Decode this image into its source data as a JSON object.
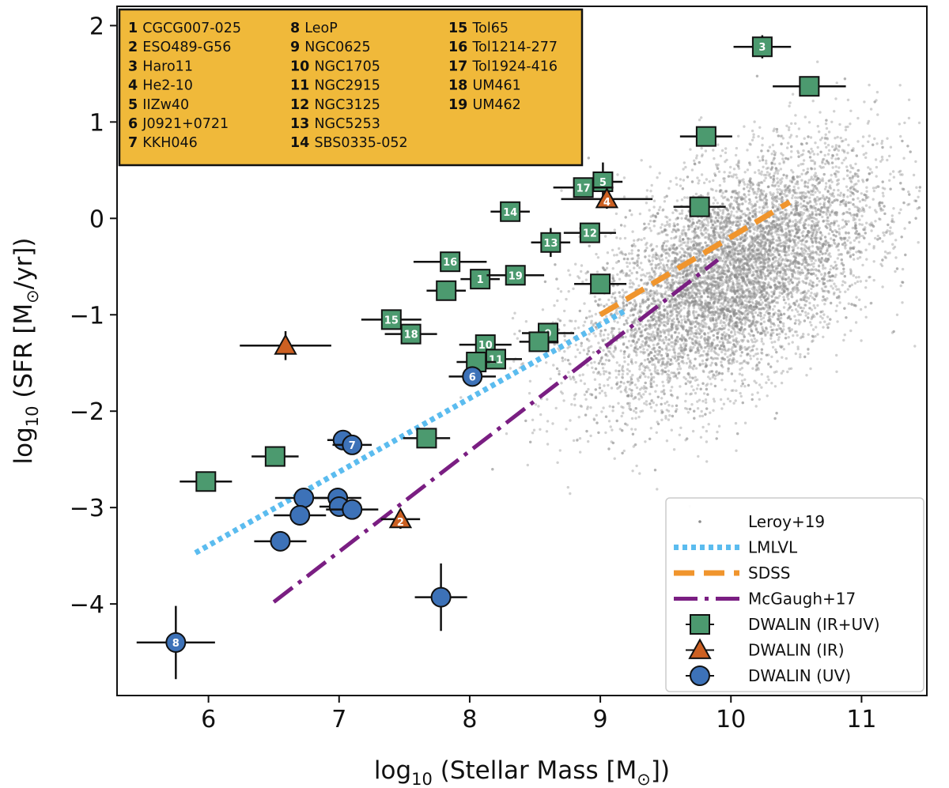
{
  "chart_data": {
    "type": "scatter",
    "title": "",
    "xlabel": {
      "prefix": "log",
      "sub": "10",
      "text": " (Stellar Mass [M",
      "sun": "⊙",
      "suffix": "])"
    },
    "ylabel": {
      "prefix": "log",
      "sub": "10",
      "text": " (SFR [M",
      "sun": "⊙",
      "suffix": "/yr])"
    },
    "xlim": [
      5.3,
      11.5
    ],
    "ylim": [
      -4.95,
      2.2
    ],
    "xticks": [
      6,
      7,
      8,
      9,
      10,
      11
    ],
    "xtick_labels": [
      "6",
      "7",
      "8",
      "9",
      "10",
      "11"
    ],
    "yticks": [
      2,
      1,
      0,
      -1,
      -2,
      -3,
      -4
    ],
    "ytick_labels": [
      "2",
      "1",
      "0",
      "−1",
      "−2",
      "−3",
      "−4"
    ],
    "colors": {
      "ir_uv": "#4c9a6f",
      "ir": "#cc6022",
      "uv": "#3d72b8",
      "lmlvl": "#5bbcef",
      "sdss": "#f0952d",
      "mcgaugh": "#7a1e82",
      "leroy": "#8c8c8c",
      "keybox": "#f0b93a"
    },
    "galaxy_key": [
      {
        "num": "1",
        "name": "CGCG007-025"
      },
      {
        "num": "2",
        "name": "ESO489-G56"
      },
      {
        "num": "3",
        "name": "Haro11"
      },
      {
        "num": "4",
        "name": "He2-10"
      },
      {
        "num": "5",
        "name": "IIZw40"
      },
      {
        "num": "6",
        "name": "J0921+0721"
      },
      {
        "num": "7",
        "name": "KKH046"
      },
      {
        "num": "8",
        "name": "LeoP"
      },
      {
        "num": "9",
        "name": "NGC0625"
      },
      {
        "num": "10",
        "name": "NGC1705"
      },
      {
        "num": "11",
        "name": "NGC2915"
      },
      {
        "num": "12",
        "name": "NGC3125"
      },
      {
        "num": "13",
        "name": "NGC5253"
      },
      {
        "num": "14",
        "name": "SBS0335-052"
      },
      {
        "num": "15",
        "name": "Tol65"
      },
      {
        "num": "16",
        "name": "Tol1214-277"
      },
      {
        "num": "17",
        "name": "Tol1924-416"
      },
      {
        "num": "18",
        "name": "UM461"
      },
      {
        "num": "19",
        "name": "UM462"
      }
    ],
    "legend": [
      {
        "label": "Leroy+19",
        "kind": "scatter"
      },
      {
        "label": "LMLVL",
        "kind": "dotted"
      },
      {
        "label": "SDSS",
        "kind": "dashed"
      },
      {
        "label": "McGaugh+17",
        "kind": "dashdot"
      },
      {
        "label": "DWALIN (IR+UV)",
        "kind": "square"
      },
      {
        "label": "DWALIN (IR)",
        "kind": "triangle"
      },
      {
        "label": "DWALIN (UV)",
        "kind": "circle"
      }
    ],
    "lines": [
      {
        "name": "LMLVL",
        "style": "dotted",
        "x": [
          5.9,
          9.2
        ],
        "y": [
          -3.47,
          -0.95
        ]
      },
      {
        "name": "SDSS",
        "style": "dashed",
        "x": [
          9.0,
          10.45
        ],
        "y": [
          -1.0,
          0.17
        ]
      },
      {
        "name": "McGaugh+17",
        "style": "dashdot",
        "x": [
          6.5,
          9.9
        ],
        "y": [
          -3.98,
          -0.43
        ]
      }
    ],
    "background": {
      "name": "Leroy+19",
      "center": [
        10.0,
        -0.6
      ],
      "spread": [
        0.55,
        0.65
      ],
      "correlation": 0.55,
      "count": 8000
    },
    "series": [
      {
        "name": "DWALIN (IR+UV)",
        "marker": "square",
        "points": [
          {
            "label": "3",
            "x": 10.24,
            "y": 1.78,
            "xerr": 0.22,
            "yerr": 0.12
          },
          {
            "label": "",
            "x": 10.6,
            "y": 1.37,
            "xerr": 0.28,
            "yerr": 0
          },
          {
            "label": "",
            "x": 9.81,
            "y": 0.85,
            "xerr": 0.2,
            "yerr": 0.1
          },
          {
            "label": "5",
            "x": 9.02,
            "y": 0.38,
            "xerr": 0.15,
            "yerr": 0.2
          },
          {
            "label": "17",
            "x": 8.87,
            "y": 0.32,
            "xerr": 0.23,
            "yerr": 0.1
          },
          {
            "label": "",
            "x": 9.76,
            "y": 0.12,
            "xerr": 0.2,
            "yerr": 0.1
          },
          {
            "label": "14",
            "x": 8.31,
            "y": 0.07,
            "xerr": 0.15,
            "yerr": 0.1
          },
          {
            "label": "12",
            "x": 8.92,
            "y": -0.15,
            "xerr": 0.2,
            "yerr": 0.1
          },
          {
            "label": "13",
            "x": 8.62,
            "y": -0.25,
            "xerr": 0.15,
            "yerr": 0.15
          },
          {
            "label": "16",
            "x": 7.85,
            "y": -0.45,
            "xerr": 0.28,
            "yerr": 0.1
          },
          {
            "label": "1",
            "x": 8.08,
            "y": -0.63,
            "xerr": 0.15,
            "yerr": 0.1
          },
          {
            "label": "19",
            "x": 8.35,
            "y": -0.59,
            "xerr": 0.22,
            "yerr": 0.05
          },
          {
            "label": "",
            "x": 9.0,
            "y": -0.68,
            "xerr": 0.2,
            "yerr": 0.1
          },
          {
            "label": "",
            "x": 7.82,
            "y": -0.75,
            "xerr": 0.15,
            "yerr": 0.1
          },
          {
            "label": "15",
            "x": 7.4,
            "y": -1.05,
            "xerr": 0.23,
            "yerr": 0.1
          },
          {
            "label": "18",
            "x": 7.55,
            "y": -1.2,
            "xerr": 0.2,
            "yerr": 0.08
          },
          {
            "label": "9",
            "x": 8.6,
            "y": -1.19,
            "xerr": 0.2,
            "yerr": 0.1
          },
          {
            "label": "",
            "x": 8.53,
            "y": -1.28,
            "xerr": 0.15,
            "yerr": 0.1
          },
          {
            "label": "10",
            "x": 8.12,
            "y": -1.31,
            "xerr": 0.2,
            "yerr": 0.08
          },
          {
            "label": "11",
            "x": 8.2,
            "y": -1.46,
            "xerr": 0.2,
            "yerr": 0.08
          },
          {
            "label": "",
            "x": 8.05,
            "y": -1.49,
            "xerr": 0.15,
            "yerr": 0.1
          },
          {
            "label": "",
            "x": 7.67,
            "y": -2.28,
            "xerr": 0.18,
            "yerr": 0.1
          },
          {
            "label": "",
            "x": 6.51,
            "y": -2.47,
            "xerr": 0.18,
            "yerr": 0.05
          },
          {
            "label": "",
            "x": 5.98,
            "y": -2.73,
            "xerr": 0.2,
            "yerr": 0.05
          }
        ]
      },
      {
        "name": "DWALIN (IR)",
        "marker": "triangle",
        "points": [
          {
            "label": "4",
            "x": 9.05,
            "y": 0.2,
            "xerr": 0.35,
            "yerr": 0.1
          },
          {
            "label": "",
            "x": 6.59,
            "y": -1.32,
            "xerr": 0.35,
            "yerr": 0.15
          },
          {
            "label": "2",
            "x": 7.47,
            "y": -3.12,
            "xerr": 0.15,
            "yerr": 0.1
          }
        ]
      },
      {
        "name": "DWALIN (UV)",
        "marker": "circle",
        "points": [
          {
            "label": "6",
            "x": 8.02,
            "y": -1.64,
            "xerr": 0.18,
            "yerr": 0.05
          },
          {
            "label": "",
            "x": 7.03,
            "y": -2.3,
            "xerr": 0.12,
            "yerr": 0.05
          },
          {
            "label": "7",
            "x": 7.1,
            "y": -2.35,
            "xerr": 0.15,
            "yerr": 0.05
          },
          {
            "label": "",
            "x": 6.73,
            "y": -2.9,
            "xerr": 0.22,
            "yerr": 0.05
          },
          {
            "label": "",
            "x": 6.99,
            "y": -2.9,
            "xerr": 0.18,
            "yerr": 0.05
          },
          {
            "label": "",
            "x": 7.0,
            "y": -2.99,
            "xerr": 0.15,
            "yerr": 0.05
          },
          {
            "label": "",
            "x": 7.1,
            "y": -3.02,
            "xerr": 0.2,
            "yerr": 0.05
          },
          {
            "label": "",
            "x": 6.7,
            "y": -3.08,
            "xerr": 0.2,
            "yerr": 0.05
          },
          {
            "label": "",
            "x": 6.55,
            "y": -3.35,
            "xerr": 0.2,
            "yerr": 0.05
          },
          {
            "label": "",
            "x": 7.78,
            "y": -3.93,
            "xerr": 0.2,
            "yerr": 0.35
          },
          {
            "label": "8",
            "x": 5.75,
            "y": -4.4,
            "xerr": 0.3,
            "yerr": 0.38
          }
        ]
      }
    ]
  }
}
